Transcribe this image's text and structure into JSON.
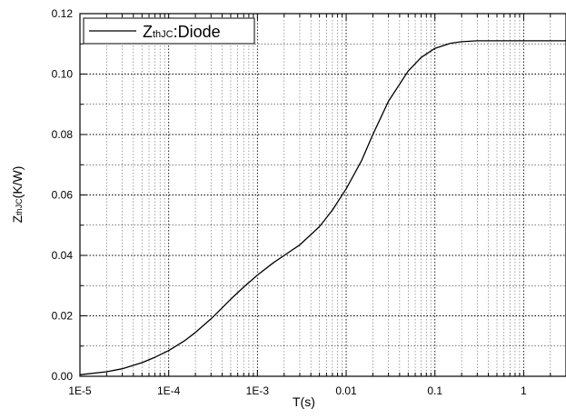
{
  "chart_data": {
    "type": "line",
    "title": "",
    "xlabel": "T(s)",
    "ylabel": "ZthJC(K/W)",
    "ylabel_parts": {
      "main": "Z",
      "sub": "thJC",
      "rest": "(K/W)"
    },
    "x_scale": "log",
    "xlim": [
      1e-05,
      3
    ],
    "ylim": [
      0,
      0.12
    ],
    "grid": true,
    "legend_position": "top-left",
    "x_ticks": [
      {
        "value": 1e-05,
        "label": "1E-5"
      },
      {
        "value": 0.0001,
        "label": "1E-4"
      },
      {
        "value": 0.001,
        "label": "1E-3"
      },
      {
        "value": 0.01,
        "label": "0.01"
      },
      {
        "value": 0.1,
        "label": "0.1"
      },
      {
        "value": 1,
        "label": "1"
      }
    ],
    "y_ticks": [
      {
        "value": 0,
        "label": "0.00"
      },
      {
        "value": 0.02,
        "label": "0.02"
      },
      {
        "value": 0.04,
        "label": "0.04"
      },
      {
        "value": 0.06,
        "label": "0.06"
      },
      {
        "value": 0.08,
        "label": "0.08"
      },
      {
        "value": 0.1,
        "label": "0.10"
      },
      {
        "value": 0.12,
        "label": "0.12"
      }
    ],
    "series": [
      {
        "name": "ZthJC:Diode",
        "name_parts": {
          "main": "Z",
          "sub": "thJC",
          "rest": ":Diode"
        },
        "color": "#000000",
        "x": [
          1e-05,
          2e-05,
          3e-05,
          5e-05,
          7e-05,
          0.0001,
          0.00015,
          0.0002,
          0.0003,
          0.0005,
          0.0007,
          0.001,
          0.0015,
          0.002,
          0.003,
          0.005,
          0.007,
          0.01,
          0.015,
          0.02,
          0.03,
          0.05,
          0.07,
          0.1,
          0.15,
          0.2,
          0.3,
          0.5,
          1,
          2,
          3
        ],
        "y": [
          0.0005,
          0.0015,
          0.0025,
          0.0045,
          0.0063,
          0.0085,
          0.0117,
          0.0145,
          0.019,
          0.0255,
          0.0295,
          0.0335,
          0.0375,
          0.04,
          0.0435,
          0.0495,
          0.055,
          0.062,
          0.0715,
          0.08,
          0.091,
          0.101,
          0.1055,
          0.1085,
          0.1102,
          0.1107,
          0.111,
          0.111,
          0.111,
          0.111,
          0.111
        ]
      }
    ]
  }
}
